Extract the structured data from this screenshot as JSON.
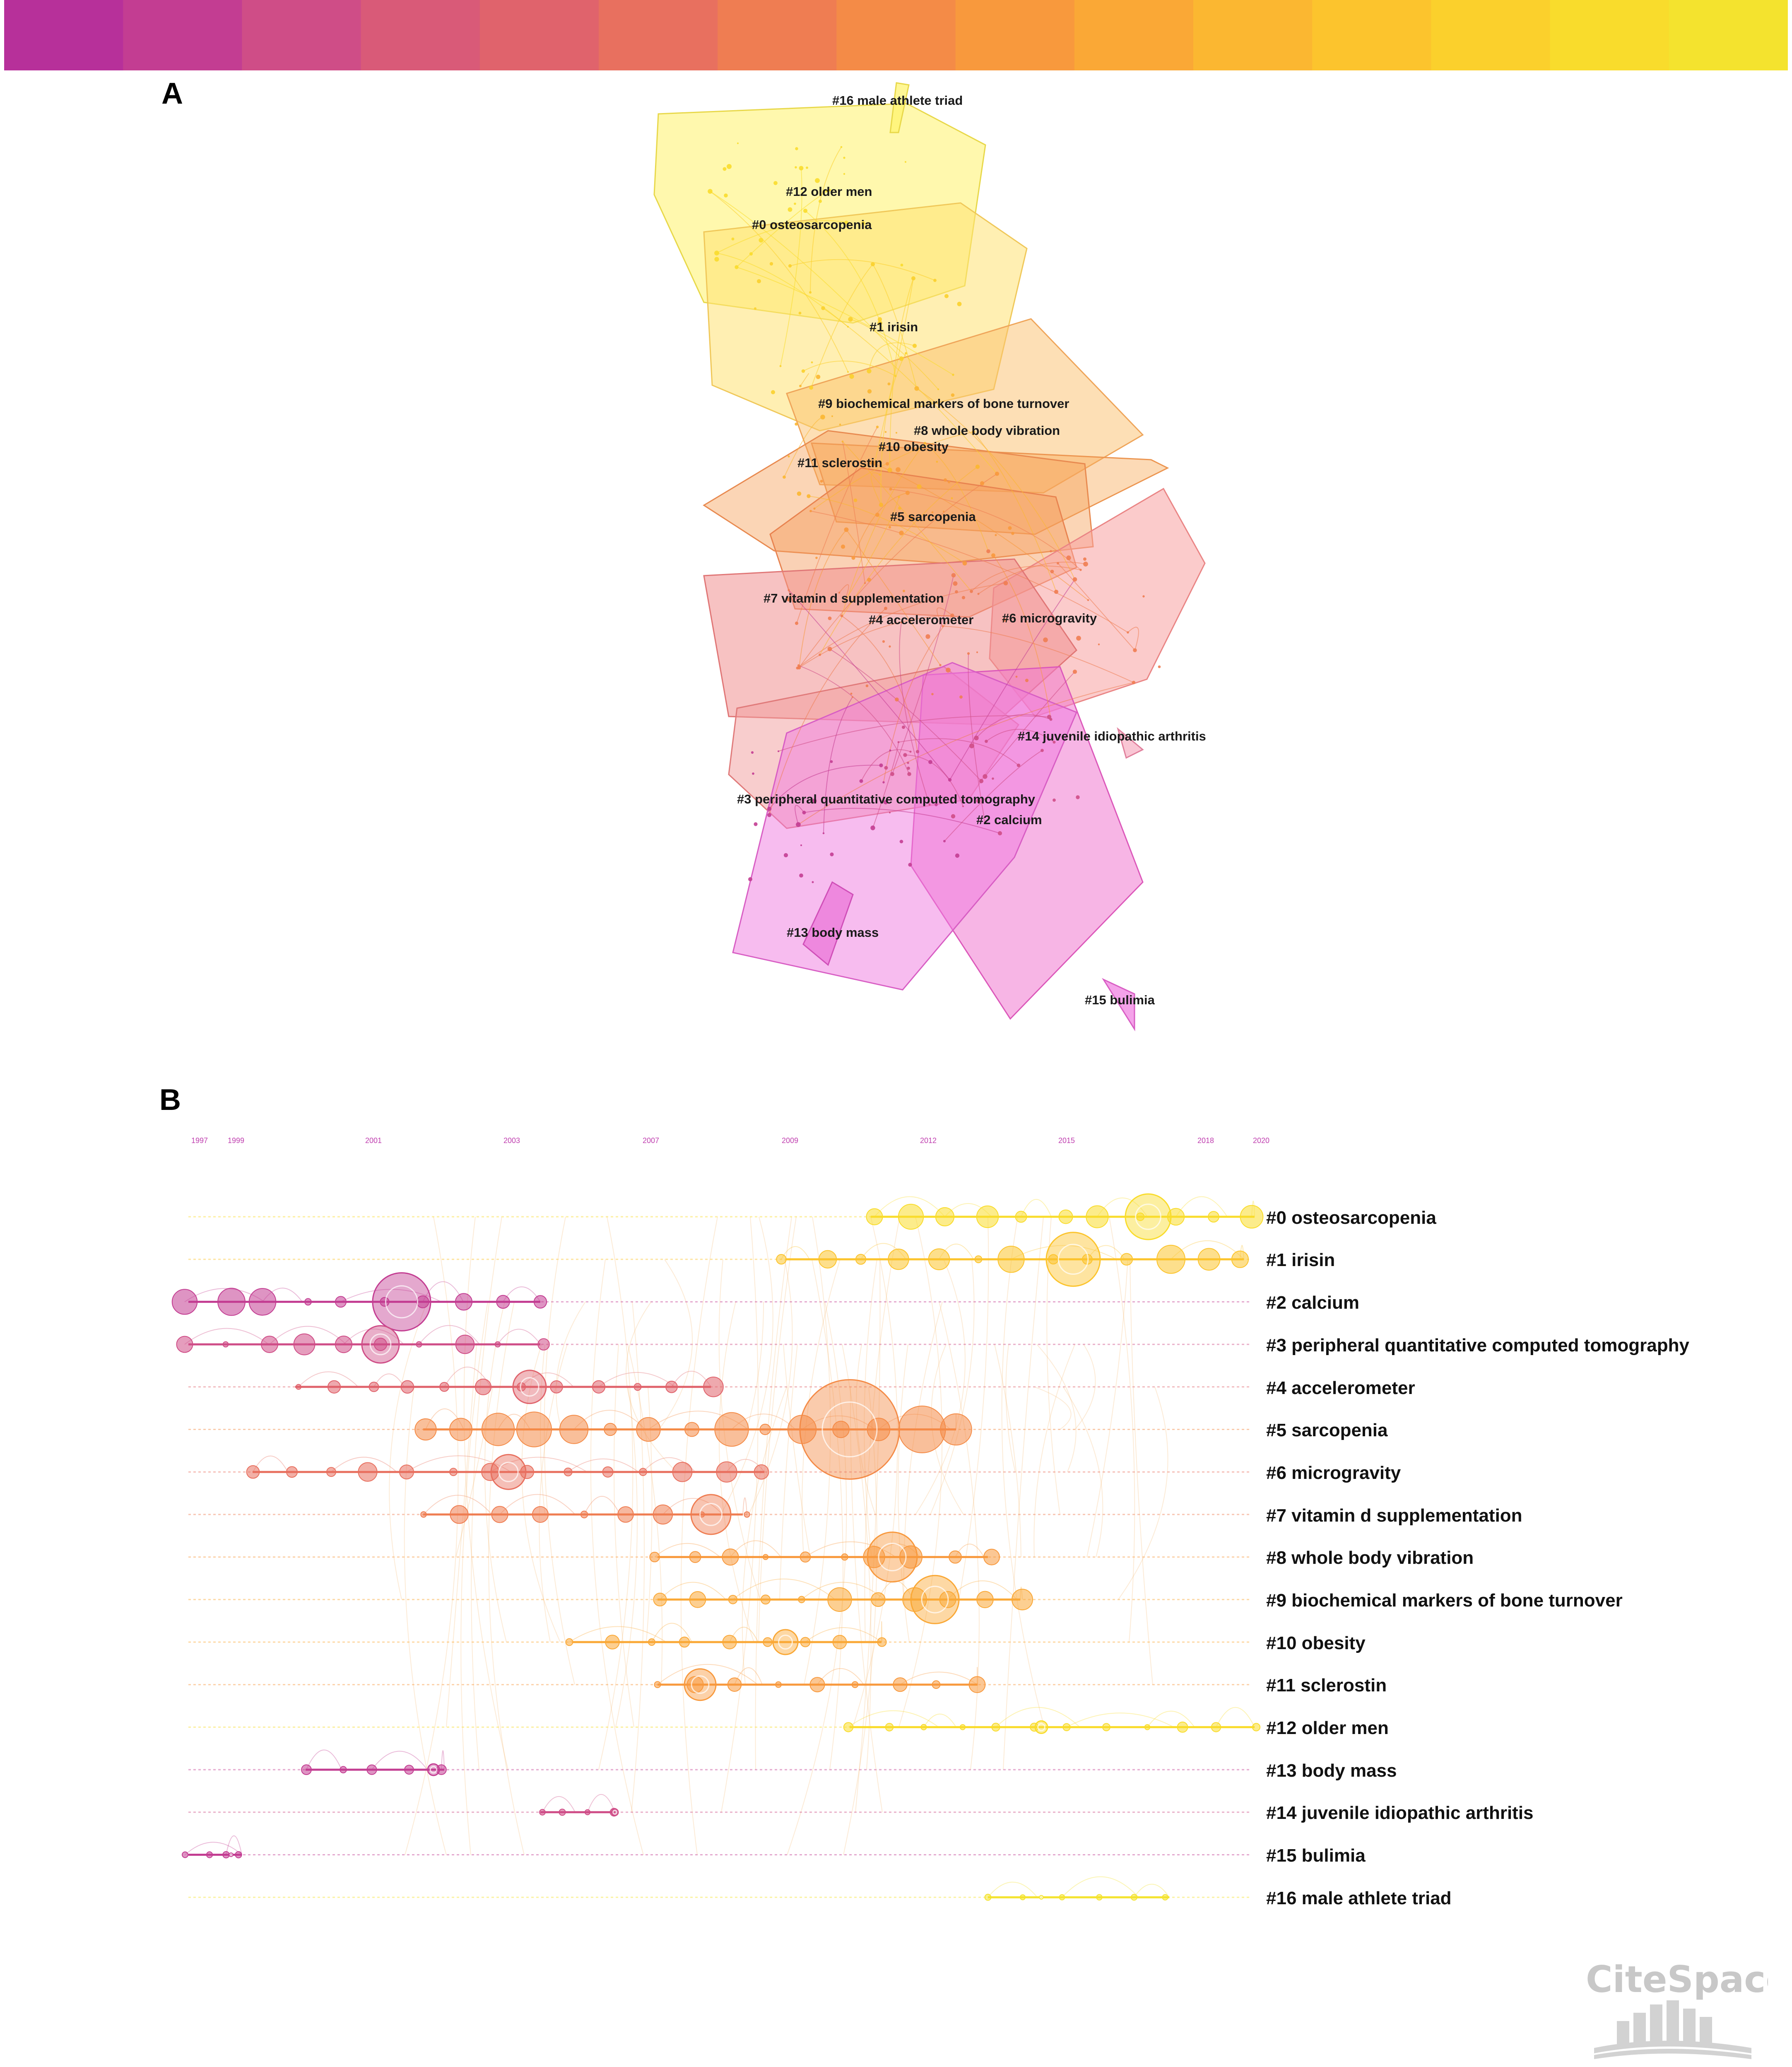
{
  "panel_labels": {
    "a": "A",
    "b": "B"
  },
  "color_scale": [
    "#b7309a",
    "#c33d92",
    "#cf4d87",
    "#d95a78",
    "#e0636c",
    "#e8705f",
    "#ef7d52",
    "#f48b47",
    "#f8993d",
    "#faa836",
    "#fbb731",
    "#fcc42d",
    "#fbd02c",
    "#f9dc2c",
    "#f4e32e"
  ],
  "cluster_map": {
    "labels": [
      "#16 male athlete triad",
      "#12 older men",
      "#0 osteosarcopenia",
      "#1 irisin",
      "#9 biochemical markers of bone turnover",
      "#8 whole body vibration",
      "#10 obesity",
      "#11 sclerostin",
      "#5 sarcopenia",
      "#7 vitamin d supplementation",
      "#4 accelerometer",
      "#6 microgravity",
      "#14 juvenile idiopathic arthritis",
      "#3 peripheral quantitative computed tomography",
      "#2 calcium",
      "#13 body mass",
      "#15 bulimia"
    ]
  },
  "timeline": {
    "year_ticks": [
      "1997",
      "1999",
      "2001",
      "2003",
      "2007",
      "2009",
      "2012",
      "2015",
      "2018",
      "2020"
    ],
    "tracks": [
      "#0 osteosarcopenia",
      "#1 irisin",
      "#2 calcium",
      "#3 peripheral quantitative computed tomography",
      "#4 accelerometer",
      "#5 sarcopenia",
      "#6 microgravity",
      "#7 vitamin d supplementation",
      "#8 whole body vibration",
      "#9 biochemical markers of bone turnover",
      "#10 obesity",
      "#11 sclerostin",
      "#12 older men",
      "#13 body mass",
      "#14 juvenile idiopathic arthritis",
      "#15 bulimia",
      "#16 male athlete triad"
    ]
  },
  "watermark": {
    "text": "CiteSpace"
  }
}
